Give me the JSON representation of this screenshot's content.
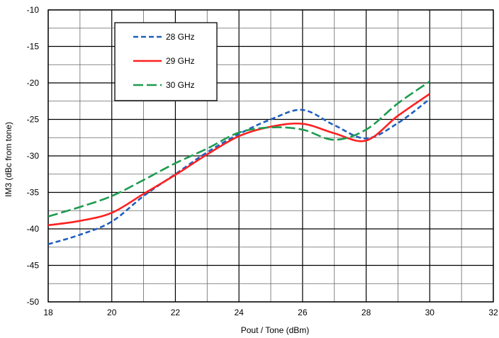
{
  "chart_data": {
    "type": "line",
    "title": "",
    "xlabel": "Pout / Tone (dBm)",
    "ylabel": "IM3 (dBc from tone)",
    "xlim": [
      18,
      32
    ],
    "ylim": [
      -50,
      -10
    ],
    "x_ticks": [
      "18",
      "20",
      "22",
      "24",
      "26",
      "28",
      "30",
      "32"
    ],
    "y_ticks": [
      "-10",
      "-15",
      "-20",
      "-25",
      "-30",
      "-35",
      "-40",
      "-45",
      "-50"
    ],
    "grid": true,
    "legend_position": "top-left",
    "series": [
      {
        "name": "28 GHz",
        "color": "#1f5fbf",
        "dash": "dashed",
        "x": [
          18,
          19,
          20,
          21,
          22,
          23,
          24,
          25,
          26,
          27,
          28,
          29,
          30
        ],
        "y": [
          -42.1,
          -40.8,
          -39.0,
          -35.5,
          -32.5,
          -29.5,
          -27.0,
          -25.0,
          -23.7,
          -25.8,
          -27.6,
          -25.5,
          -22.2
        ]
      },
      {
        "name": "29 GHz",
        "color": "#ff2020",
        "dash": "solid",
        "x": [
          18,
          19,
          20,
          21,
          22,
          23,
          24,
          25,
          26,
          27,
          28,
          29,
          30
        ],
        "y": [
          -39.5,
          -38.9,
          -37.8,
          -35.2,
          -32.6,
          -29.8,
          -27.3,
          -26.0,
          -25.6,
          -26.9,
          -27.9,
          -24.5,
          -21.5
        ]
      },
      {
        "name": "30 GHz",
        "color": "#1e9b50",
        "dash": "longdash",
        "x": [
          18,
          19,
          20,
          21,
          22,
          23,
          24,
          25,
          26,
          27,
          28,
          29,
          30
        ],
        "y": [
          -38.3,
          -37.0,
          -35.5,
          -33.3,
          -31.0,
          -29.0,
          -26.8,
          -26.1,
          -26.4,
          -27.8,
          -26.4,
          -22.8,
          -19.8
        ]
      }
    ]
  }
}
